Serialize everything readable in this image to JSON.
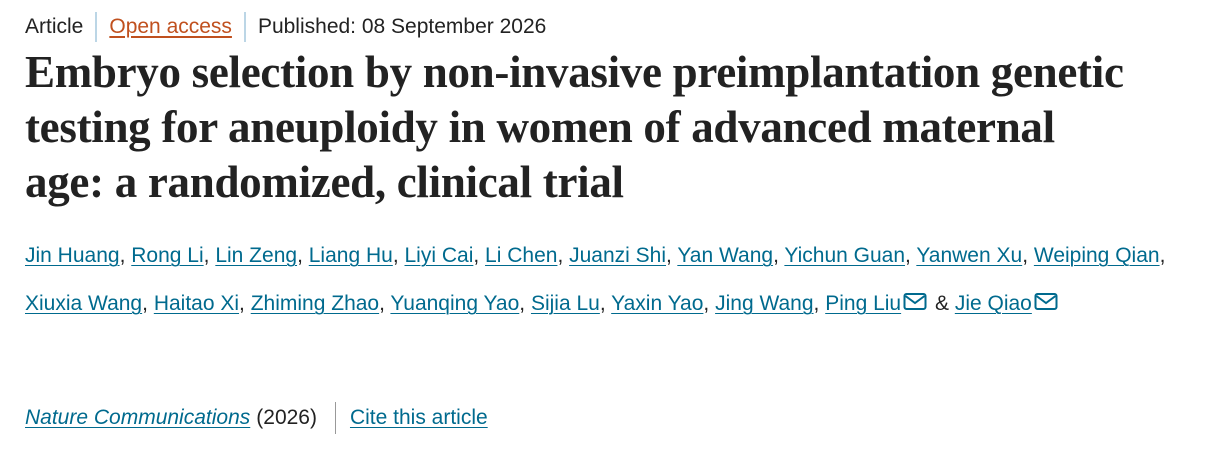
{
  "header": {
    "article_type": "Article",
    "access": "Open access",
    "published": "Published: 08 September 2026"
  },
  "title": "Embryo selection by non-invasive preimplantation genetic testing for aneuploidy in women of advanced maternal age: a randomized, clinical trial",
  "authors": {
    "separator": ",",
    "last_separator": "&",
    "list": [
      {
        "name": "Jin Huang"
      },
      {
        "name": "Rong Li"
      },
      {
        "name": "Lin Zeng"
      },
      {
        "name": "Liang Hu"
      },
      {
        "name": "Liyi Cai"
      },
      {
        "name": "Li Chen"
      },
      {
        "name": "Juanzi Shi"
      },
      {
        "name": "Yan Wang"
      },
      {
        "name": "Yichun Guan"
      },
      {
        "name": "Yanwen Xu"
      },
      {
        "name": "Weiping Qian"
      },
      {
        "name": "Xiuxia Wang"
      },
      {
        "name": "Haitao Xi"
      },
      {
        "name": "Zhiming Zhao"
      },
      {
        "name": "Yuanqing Yao"
      },
      {
        "name": "Sijia Lu"
      },
      {
        "name": "Yaxin Yao"
      },
      {
        "name": "Jing Wang"
      },
      {
        "name": "Ping Liu",
        "corresponding": true
      },
      {
        "name": "Jie Qiao",
        "corresponding": true
      }
    ]
  },
  "footer": {
    "journal": "Nature Communications",
    "year": "(2026)",
    "cite": "Cite this article"
  }
}
